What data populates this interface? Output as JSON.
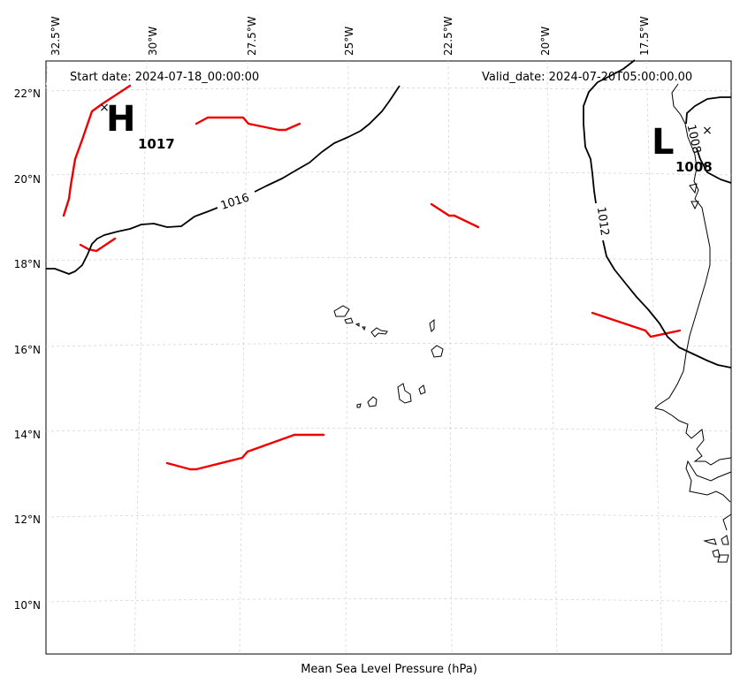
{
  "map": {
    "start_date": "Start date: 2024-07-18_00:00:00",
    "valid_date": "Valid_date: 2024-07-20T05:00:00.00",
    "caption": "Mean Sea Level Pressure (hPa)",
    "lon_ticks": [
      "32.5°W",
      "30°W",
      "27.5°W",
      "25°W",
      "22.5°W",
      "20°W",
      "17.5°W"
    ],
    "lat_ticks": [
      "22°N",
      "20°N",
      "18°N",
      "16°N",
      "14°N",
      "12°N",
      "10°N"
    ],
    "contours": [
      {
        "level": 1016,
        "label": "1016"
      },
      {
        "level": 1012,
        "label": "1012"
      },
      {
        "level": 1008,
        "label": "1008"
      }
    ],
    "high": {
      "letter": "H",
      "value": "1017"
    },
    "low": {
      "letter": "L",
      "value": "1008"
    },
    "colors": {
      "isobar": "#000000",
      "trough": "#ee0000",
      "coast": "#000000",
      "grid": "#cccccc"
    }
  }
}
